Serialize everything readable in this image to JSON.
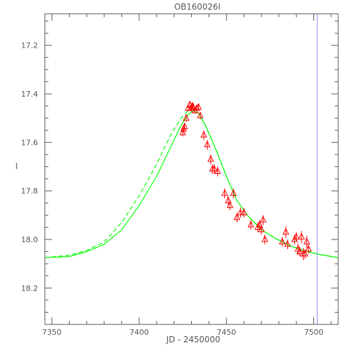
{
  "chart_data": {
    "type": "scatter",
    "title": "OB160026I",
    "xlabel": "JD - 2450000",
    "ylabel": "I",
    "xlim": [
      7346,
      7514
    ],
    "ylim": [
      18.35,
      17.07
    ],
    "y_inverted": true,
    "x_ticks": [
      7350,
      7400,
      7450,
      7500
    ],
    "y_ticks": [
      17.2,
      17.4,
      17.6,
      17.8,
      18.0,
      18.2
    ],
    "x_tick_labels": [
      "7350",
      "7400",
      "7450",
      "7500"
    ],
    "y_tick_labels": [
      "17.2",
      "17.4",
      "17.6",
      "17.8",
      "18.0",
      "18.2"
    ],
    "vertical_line_x": 7502,
    "colors": {
      "data_points": "#ff0000",
      "model_solid": "#00ff00",
      "model_dashed": "#00ff00",
      "marker_line": "#8888ff",
      "axes": "#555555"
    },
    "series": [
      {
        "marker": "triangle",
        "points": [
          [
            7425,
            17.56
          ],
          [
            7425.5,
            17.545
          ],
          [
            7426,
            17.535
          ],
          [
            7427,
            17.5
          ],
          [
            7428,
            17.46
          ],
          [
            7429,
            17.445
          ],
          [
            7430,
            17.46
          ],
          [
            7430.5,
            17.45
          ],
          [
            7431,
            17.455
          ],
          [
            7432,
            17.47
          ],
          [
            7433,
            17.46
          ],
          [
            7434,
            17.455
          ],
          [
            7435,
            17.49
          ],
          [
            7437,
            17.57
          ],
          [
            7439,
            17.61
          ],
          [
            7441,
            17.67
          ],
          [
            7442,
            17.71
          ],
          [
            7443,
            17.71
          ],
          [
            7445,
            17.72
          ],
          [
            7449,
            17.81
          ],
          [
            7451,
            17.84
          ],
          [
            7452,
            17.86
          ],
          [
            7454,
            17.81
          ],
          [
            7456,
            17.91
          ],
          [
            7458,
            17.89
          ],
          [
            7460,
            17.89
          ],
          [
            7464,
            17.94
          ],
          [
            7468,
            17.95
          ],
          [
            7469,
            17.94
          ],
          [
            7470,
            17.96
          ],
          [
            7471,
            17.92
          ],
          [
            7472,
            18.0
          ],
          [
            7482,
            18.01
          ],
          [
            7484,
            17.97
          ],
          [
            7485,
            18.02
          ],
          [
            7489,
            18.0
          ],
          [
            7490,
            17.99
          ],
          [
            7491,
            18.04
          ],
          [
            7492,
            18.05
          ],
          [
            7493,
            17.99
          ],
          [
            7494,
            18.06
          ],
          [
            7495,
            18.06
          ],
          [
            7496,
            18.01
          ],
          [
            7497,
            18.04
          ]
        ],
        "errors": [
          0.015,
          0.015,
          0.015,
          0.015,
          0.012,
          0.012,
          0.012,
          0.012,
          0.012,
          0.012,
          0.012,
          0.012,
          0.015,
          0.02,
          0.02,
          0.02,
          0.02,
          0.02,
          0.02,
          0.02,
          0.02,
          0.02,
          0.02,
          0.02,
          0.02,
          0.02,
          0.02,
          0.02,
          0.02,
          0.02,
          0.02,
          0.02,
          0.02,
          0.025,
          0.02,
          0.02,
          0.02,
          0.025,
          0.02,
          0.025,
          0.025,
          0.02,
          0.025,
          0.02
        ]
      },
      {
        "line": "solid",
        "points": [
          [
            7346,
            18.075
          ],
          [
            7360,
            18.07
          ],
          [
            7370,
            18.05
          ],
          [
            7380,
            18.02
          ],
          [
            7390,
            17.96
          ],
          [
            7400,
            17.86
          ],
          [
            7410,
            17.74
          ],
          [
            7418,
            17.62
          ],
          [
            7424,
            17.53
          ],
          [
            7428,
            17.485
          ],
          [
            7431,
            17.47
          ],
          [
            7434,
            17.48
          ],
          [
            7438,
            17.53
          ],
          [
            7444,
            17.63
          ],
          [
            7450,
            17.74
          ],
          [
            7456,
            17.84
          ],
          [
            7462,
            17.9
          ],
          [
            7470,
            17.96
          ],
          [
            7478,
            17.995
          ],
          [
            7486,
            18.025
          ],
          [
            7494,
            18.045
          ],
          [
            7502,
            18.06
          ],
          [
            7510,
            18.07
          ],
          [
            7514,
            18.075
          ]
        ]
      },
      {
        "line": "dashed",
        "points": [
          [
            7346,
            18.075
          ],
          [
            7360,
            18.065
          ],
          [
            7370,
            18.045
          ],
          [
            7380,
            18.01
          ],
          [
            7390,
            17.93
          ],
          [
            7400,
            17.82
          ],
          [
            7410,
            17.69
          ],
          [
            7418,
            17.57
          ],
          [
            7424,
            17.5
          ],
          [
            7428,
            17.47
          ],
          [
            7431,
            17.47
          ],
          [
            7434,
            17.48
          ],
          [
            7438,
            17.53
          ],
          [
            7444,
            17.63
          ],
          [
            7450,
            17.74
          ],
          [
            7456,
            17.84
          ],
          [
            7462,
            17.9
          ],
          [
            7470,
            17.96
          ],
          [
            7478,
            17.995
          ],
          [
            7486,
            18.025
          ],
          [
            7494,
            18.045
          ],
          [
            7502,
            18.06
          ],
          [
            7510,
            18.07
          ],
          [
            7514,
            18.075
          ]
        ]
      }
    ]
  }
}
